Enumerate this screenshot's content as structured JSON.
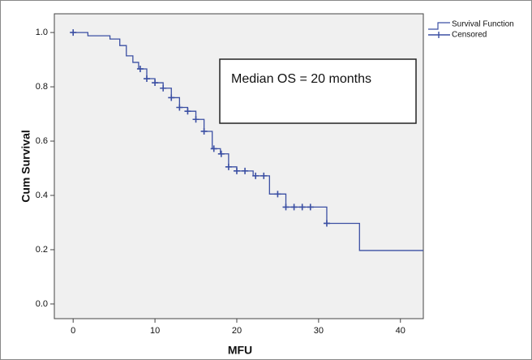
{
  "chart_data": {
    "type": "step",
    "xlabel": "MFU",
    "ylabel": "Cum Survival",
    "annotation": "Median OS = 20 months",
    "xlim": [
      -2.3,
      42.8
    ],
    "ylim": [
      -0.054,
      1.069
    ],
    "xticks": [
      0,
      10,
      20,
      30,
      40
    ],
    "yticks": [
      {
        "value": 0,
        "label": "0.0"
      },
      0.2,
      0.4,
      0.6,
      0.8,
      {
        "value": 1,
        "label": "1.0"
      }
    ],
    "legend": "outside-top-right",
    "series": [
      {
        "name": "Survival Function",
        "color": "#3b4fa3",
        "x": [
          0,
          1.8,
          4.5,
          5.7,
          6.5,
          7.3,
          8,
          9,
          10,
          11,
          12,
          13,
          14,
          15,
          16,
          17,
          18,
          19,
          20,
          22,
          24,
          26,
          31,
          35,
          42.8
        ],
        "values": [
          1.0,
          0.988,
          0.976,
          0.952,
          0.914,
          0.89,
          0.866,
          0.83,
          0.815,
          0.795,
          0.76,
          0.724,
          0.71,
          0.68,
          0.636,
          0.572,
          0.553,
          0.505,
          0.49,
          0.472,
          0.405,
          0.357,
          0.297,
          0.197,
          0.197
        ]
      },
      {
        "name": "Censored",
        "color": "#3b4fa3",
        "x": [
          0,
          8.2,
          9,
          10,
          11,
          12,
          13,
          14,
          15,
          16,
          17.2,
          18.1,
          19,
          20,
          21,
          22.3,
          23.3,
          25,
          26,
          27,
          28,
          29,
          31
        ],
        "values": [
          1.0,
          0.866,
          0.83,
          0.815,
          0.795,
          0.76,
          0.724,
          0.71,
          0.68,
          0.636,
          0.572,
          0.553,
          0.505,
          0.49,
          0.49,
          0.472,
          0.472,
          0.405,
          0.357,
          0.357,
          0.357,
          0.357,
          0.297
        ]
      }
    ]
  }
}
